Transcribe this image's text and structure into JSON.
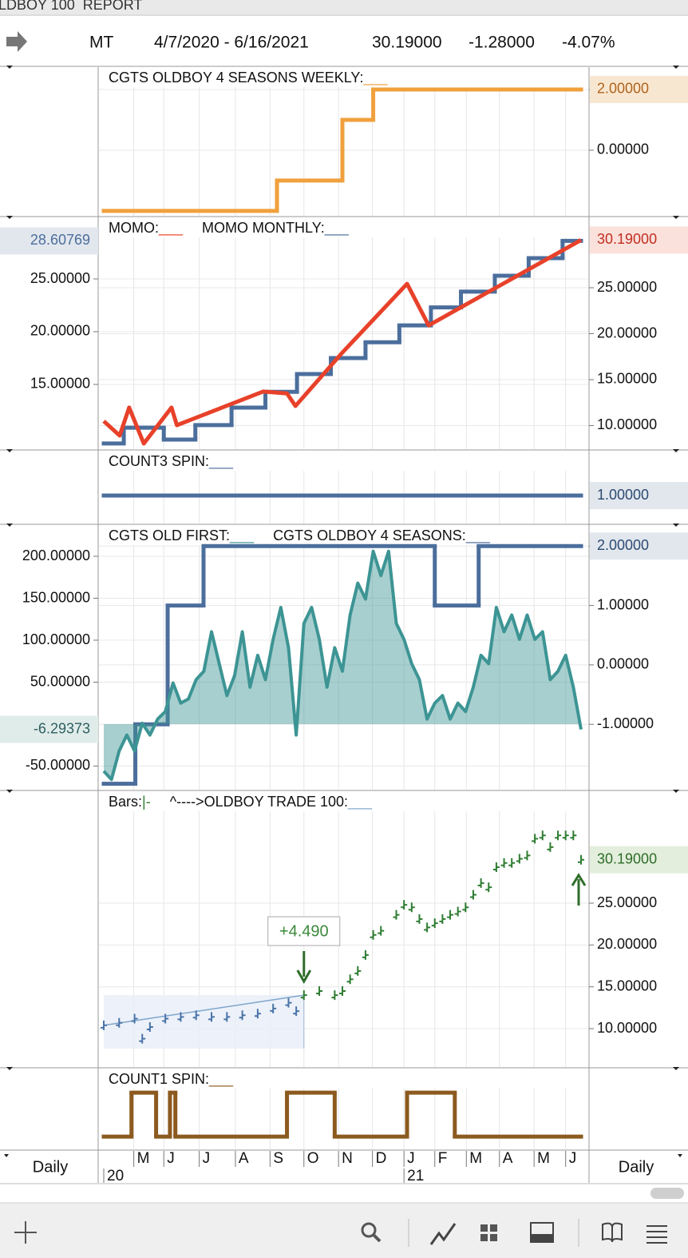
{
  "header": {
    "title": "LDBOY 100  REPORT",
    "symbol": "MT",
    "range": "4/7/2020 - 6/16/2021",
    "last": "30.19000",
    "change": "-1.28000",
    "percent": "-4.07%"
  },
  "time_axis": {
    "xlim": [
      0,
      62
    ],
    "xticks": [
      {
        "value": 3.9,
        "label": "M"
      },
      {
        "value": 7.8,
        "label": "J"
      },
      {
        "value": 12.4,
        "label": "J"
      },
      {
        "value": 17.1,
        "label": "A"
      },
      {
        "value": 21.6,
        "label": "S"
      },
      {
        "value": 26.0,
        "label": "O"
      },
      {
        "value": 30.5,
        "label": "N"
      },
      {
        "value": 34.9,
        "label": "D"
      },
      {
        "value": 39.0,
        "label": "J"
      },
      {
        "value": 43.0,
        "label": "F"
      },
      {
        "value": 47.1,
        "label": "M"
      },
      {
        "value": 51.4,
        "label": "A"
      },
      {
        "value": 55.9,
        "label": "M"
      },
      {
        "value": 60.0,
        "label": "J"
      }
    ],
    "years": [
      {
        "value": 0,
        "label": "20"
      },
      {
        "value": 39.0,
        "label": "21"
      }
    ]
  },
  "footer": {
    "interval": "Daily"
  },
  "chart_data": [
    {
      "type": "line",
      "y2lim": [
        -2.16,
        2.71
      ],
      "y2ticks": [
        {
          "value": 2,
          "label": "2.00000"
        },
        {
          "value": 0,
          "label": "0.00000"
        }
      ],
      "series": [
        {
          "name": "CGTS OLDBOY 4 SEASONS WEEKLY:",
          "marker": "___",
          "type": "step",
          "axis": "y2",
          "color": "#f0a03c",
          "x": [
            0,
            22.5,
            31,
            35
          ],
          "values": [
            -2,
            -1,
            1,
            2
          ]
        }
      ],
      "badges": [
        {
          "axis": "y2",
          "value": 2,
          "label": "2.00000",
          "bg": "#f8e7d0",
          "color": "#b0641e"
        }
      ]
    },
    {
      "type": "line",
      "ylim": [
        8.86,
        30.76
      ],
      "yticks": [
        {
          "value": 25,
          "label": "25.00000"
        },
        {
          "value": 20,
          "label": "20.00000"
        },
        {
          "value": 15,
          "label": "15.00000"
        }
      ],
      "y2lim": [
        7.43,
        32.57
      ],
      "y2ticks": [
        {
          "value": 25,
          "label": "25.00000"
        },
        {
          "value": 20,
          "label": "20.00000"
        },
        {
          "value": 15,
          "label": "15.00000"
        },
        {
          "value": 10,
          "label": "10.00000"
        }
      ],
      "series": [
        {
          "name": "MOMO:",
          "marker": "___",
          "type": "line",
          "axis": "y2",
          "color": "#e8412a",
          "x": [
            0,
            2.07,
            3.3,
            5.2,
            8.8,
            9.5,
            20.7,
            23.8,
            24.9,
            31.1,
            39.4,
            42.2,
            62
          ],
          "values": [
            10.48,
            8.91,
            11.96,
            8.04,
            11.96,
            10.04,
            13.7,
            13.5,
            12.13,
            18.04,
            25.43,
            20.9,
            30.19
          ]
        },
        {
          "name": "MOMO MONTHLY:",
          "marker": "___",
          "type": "step",
          "axis": "y",
          "color": "#4b6e9c",
          "x": [
            0,
            2.6,
            7.8,
            11.9,
            16.6,
            21.0,
            25.1,
            29.5,
            34.0,
            38.4,
            42.5,
            46.4,
            50.8,
            55.2,
            59.6
          ],
          "values": [
            9.4,
            10.9,
            9.77,
            11.14,
            12.8,
            14.3,
            15.98,
            17.5,
            19.0,
            20.6,
            22.3,
            23.8,
            25.3,
            26.97,
            28.60769
          ]
        }
      ],
      "badges": [
        {
          "axis": "y",
          "value": 28.60769,
          "label": "28.60769",
          "bg": "#e2e7ee",
          "color": "#4b6e9c"
        },
        {
          "axis": "y2",
          "value": 30.19,
          "label": "30.19000",
          "bg": "#fbe1dc",
          "color": "#c03020"
        }
      ]
    },
    {
      "type": "line",
      "y2lim": [
        0.6,
        1.63
      ],
      "series": [
        {
          "name": "COUNT3 SPIN:",
          "marker": "___",
          "type": "step",
          "axis": "y2",
          "color": "#4b6e9c",
          "x": [
            0
          ],
          "values": [
            1
          ]
        }
      ],
      "badges": [
        {
          "axis": "y2",
          "value": 1,
          "label": "1.00000",
          "bg": "#e2e7ee",
          "color": "#2c4a70"
        }
      ]
    },
    {
      "type": "line",
      "ylim": [
        -78.1,
        236.2
      ],
      "yticks": [
        {
          "value": 200,
          "label": "200.00000"
        },
        {
          "value": 150,
          "label": "150.00000"
        },
        {
          "value": 100,
          "label": "100.00000"
        },
        {
          "value": 50,
          "label": "50.00000"
        },
        {
          "value": -50,
          "label": "-50.00000"
        }
      ],
      "y2lim": [
        -2.1,
        2.34
      ],
      "y2ticks": [
        {
          "value": 2,
          "label": "2.00000"
        },
        {
          "value": 1,
          "label": "1.00000"
        },
        {
          "value": 0,
          "label": "0.00000"
        },
        {
          "value": -1,
          "label": "-1.00000"
        }
      ],
      "series": [
        {
          "name": "CGTS OLD FIRST:",
          "marker": "___",
          "type": "area",
          "axis": "y",
          "color": "#3d9494",
          "x": [
            0,
            1,
            2,
            3,
            4,
            5,
            6,
            7,
            8,
            9,
            10,
            11,
            12,
            13,
            14,
            15,
            16,
            17,
            18,
            19,
            20,
            21,
            22,
            23,
            24,
            25,
            26,
            27,
            28,
            29,
            30,
            31,
            32,
            33,
            34,
            35,
            36,
            37,
            38,
            39,
            40,
            41,
            42,
            43,
            44,
            45,
            46,
            47,
            48,
            49,
            50,
            51,
            52,
            53,
            54,
            55,
            56,
            57,
            58,
            59,
            60,
            61,
            62
          ],
          "values": [
            -56,
            -66,
            -32,
            -13,
            -32,
            1,
            -13,
            6,
            15,
            49,
            25,
            30,
            53,
            63,
            110,
            72,
            34,
            58,
            110,
            44,
            82,
            53,
            101,
            139,
            91,
            -13,
            120,
            139,
            101,
            44,
            91,
            63,
            130,
            168,
            149,
            206,
            177,
            206,
            120,
            101,
            72,
            53,
            6,
            25,
            34,
            6,
            25,
            15,
            44,
            82,
            72,
            139,
            110,
            130,
            101,
            130,
            101,
            110,
            53,
            63,
            82,
            44,
            -6.29373
          ]
        },
        {
          "name": "CGTS OLDBOY 4 SEASONS:",
          "marker": "___",
          "type": "step",
          "axis": "y2",
          "color": "#4b6e9c",
          "x": [
            0,
            4.1,
            8.3,
            12.96,
            43.0,
            48.7
          ],
          "values": [
            -2,
            -1,
            1,
            2,
            1,
            2
          ]
        }
      ],
      "badges": [
        {
          "axis": "y",
          "value": -6.29373,
          "label": "-6.29373",
          "bg": "#e0ecea",
          "color": "#2c6060"
        },
        {
          "axis": "y2",
          "value": 2,
          "label": "2.00000",
          "bg": "#e2e7ee",
          "color": "#2c4a70"
        }
      ]
    },
    {
      "type": "line",
      "y2lim": [
        5.42,
        38.28
      ],
      "y2ticks": [
        {
          "value": 25,
          "label": "25.00000"
        },
        {
          "value": 20,
          "label": "20.00000"
        },
        {
          "value": 15,
          "label": "15.00000"
        },
        {
          "value": 10,
          "label": "10.00000"
        }
      ],
      "annotation": {
        "text": "+4.490",
        "x": 26
      },
      "series": [
        {
          "name": "Bars:",
          "marker": "|-",
          "type": "ohlc",
          "axis": "y2",
          "colors": [
            "#4a74a8",
            "#2f7d32"
          ],
          "x": [
            0,
            2,
            4,
            5,
            6,
            8,
            10,
            12,
            14,
            16,
            18,
            20,
            22,
            24,
            25,
            26,
            28,
            30,
            31,
            32,
            33,
            34,
            35,
            36,
            38,
            39,
            40,
            41,
            42,
            43,
            44,
            45,
            46,
            47,
            48,
            49,
            50,
            51,
            52,
            53,
            54,
            55,
            56,
            57,
            58,
            59,
            60,
            61,
            62
          ],
          "values": [
            10.4,
            10.7,
            11.2,
            8.8,
            10.2,
            11.2,
            11.4,
            11.6,
            11.4,
            11.4,
            11.6,
            11.8,
            12.4,
            13.1,
            12.1,
            14.0,
            14.5,
            14.0,
            14.5,
            15.9,
            16.9,
            18.8,
            21.2,
            21.7,
            23.6,
            24.8,
            24.5,
            23.1,
            22.1,
            22.6,
            23.1,
            23.6,
            24.0,
            24.5,
            26.0,
            27.4,
            26.9,
            29.3,
            29.8,
            29.8,
            30.3,
            30.7,
            32.7,
            33.1,
            31.7,
            33.1,
            33.1,
            33.1,
            30.19
          ]
        },
        {
          "name": "^---->OLDBOY TRADE 100:",
          "marker": "___",
          "type": "line",
          "axis": "y2",
          "color": "#7fa6cc",
          "x": [
            0,
            26
          ],
          "values": [
            10.4,
            14.0
          ]
        }
      ],
      "badges": [
        {
          "axis": "y2",
          "value": 30.19,
          "label": "30.19000",
          "bg": "#e3efdc",
          "color": "#2f6d2a"
        }
      ]
    },
    {
      "type": "line",
      "ylim": [
        -0.29,
        1.53
      ],
      "series": [
        {
          "name": "COUNT1 SPIN:",
          "marker": "___",
          "type": "step",
          "axis": "y",
          "color": "#8c5a1f",
          "x": [
            0,
            3.6,
            6.8,
            8.6,
            9.3,
            23.8,
            30.0,
            39.4,
            45.6
          ],
          "values": [
            0,
            1,
            0,
            1,
            0,
            1,
            0,
            1,
            0
          ]
        }
      ]
    }
  ]
}
